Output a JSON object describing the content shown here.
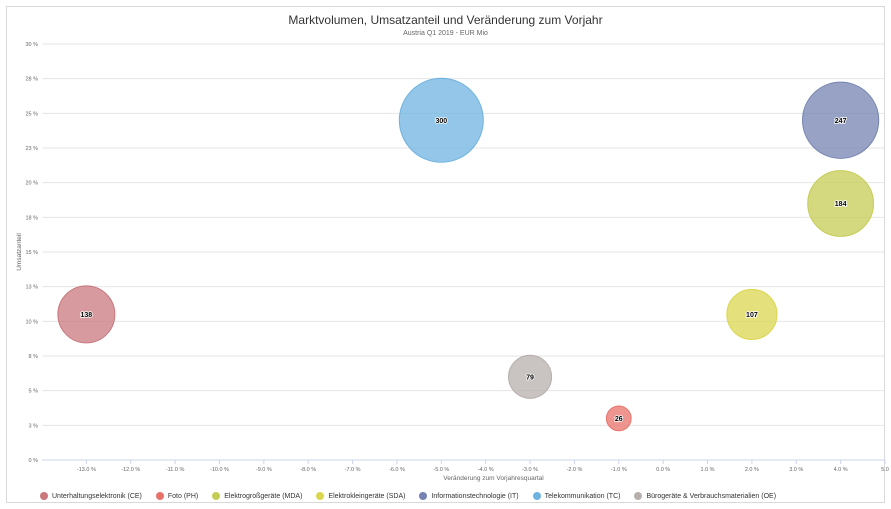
{
  "chart_data": {
    "type": "scatter",
    "title": "Marktvolumen, Umsatzanteil und Veränderung zum Vorjahr",
    "subtitle": "Austria Q1 2019 - EUR Mio",
    "xlabel": "Veränderung zum Vorjahresquartal",
    "ylabel": "Umsatzanteil",
    "xlim": [
      -14,
      5
    ],
    "ylim": [
      0,
      30
    ],
    "x_ticks": [
      "-13.0 %",
      "-12.0 %",
      "-11.0 %",
      "-10.0 %",
      "-9.0 %",
      "-8.0 %",
      "-7.0 %",
      "-6.0 %",
      "-5.0 %",
      "-4.0 %",
      "-3.0 %",
      "-2.0 %",
      "-1.0 %",
      "0.0 %",
      "1.0 %",
      "2.0 %",
      "3.0 %",
      "4.0 %",
      "5.0"
    ],
    "x_tick_values": [
      -13,
      -12,
      -11,
      -10,
      -9,
      -8,
      -7,
      -6,
      -5,
      -4,
      -3,
      -2,
      -1,
      0,
      1,
      2,
      3,
      4,
      5
    ],
    "y_ticks": [
      "0 %",
      "3 %",
      "5 %",
      "8 %",
      "10 %",
      "13 %",
      "15 %",
      "18 %",
      "20 %",
      "23 %",
      "25 %",
      "28 %",
      "30 %"
    ],
    "y_tick_values": [
      0,
      2.5,
      5,
      7.5,
      10,
      12.5,
      15,
      17.5,
      20,
      22.5,
      25,
      27.5,
      30
    ],
    "grid": true,
    "legend_position": "bottom",
    "series": [
      {
        "name": "Unterhaltungselektronik (CE)",
        "color": "#c9787e",
        "points": [
          {
            "x": -13.0,
            "y": 10.5,
            "size": 138,
            "label": "138"
          }
        ]
      },
      {
        "name": "Foto (PH)",
        "color": "#e8726b",
        "points": [
          {
            "x": -1.0,
            "y": 3.0,
            "size": 26,
            "label": "26"
          }
        ]
      },
      {
        "name": "Elektrogroßgeräte (MDA)",
        "color": "#c5cc55",
        "points": [
          {
            "x": 4.0,
            "y": 18.5,
            "size": 184,
            "label": "184"
          }
        ]
      },
      {
        "name": "Elektrokleingeräte (SDA)",
        "color": "#dbd650",
        "points": [
          {
            "x": 2.0,
            "y": 10.5,
            "size": 107,
            "label": "107"
          }
        ]
      },
      {
        "name": "Informationstechnologie (IT)",
        "color": "#7483b1",
        "points": [
          {
            "x": 4.0,
            "y": 24.5,
            "size": 247,
            "label": "247"
          }
        ]
      },
      {
        "name": "Telekommunikation (TC)",
        "color": "#6fb3e0",
        "points": [
          {
            "x": -5.0,
            "y": 24.5,
            "size": 300,
            "label": "300"
          }
        ]
      },
      {
        "name": "Bürogeräte & Verbrauchsmaterialien (OE)",
        "color": "#b7afac",
        "points": [
          {
            "x": -3.0,
            "y": 6.0,
            "size": 79,
            "label": "79"
          }
        ]
      }
    ]
  }
}
